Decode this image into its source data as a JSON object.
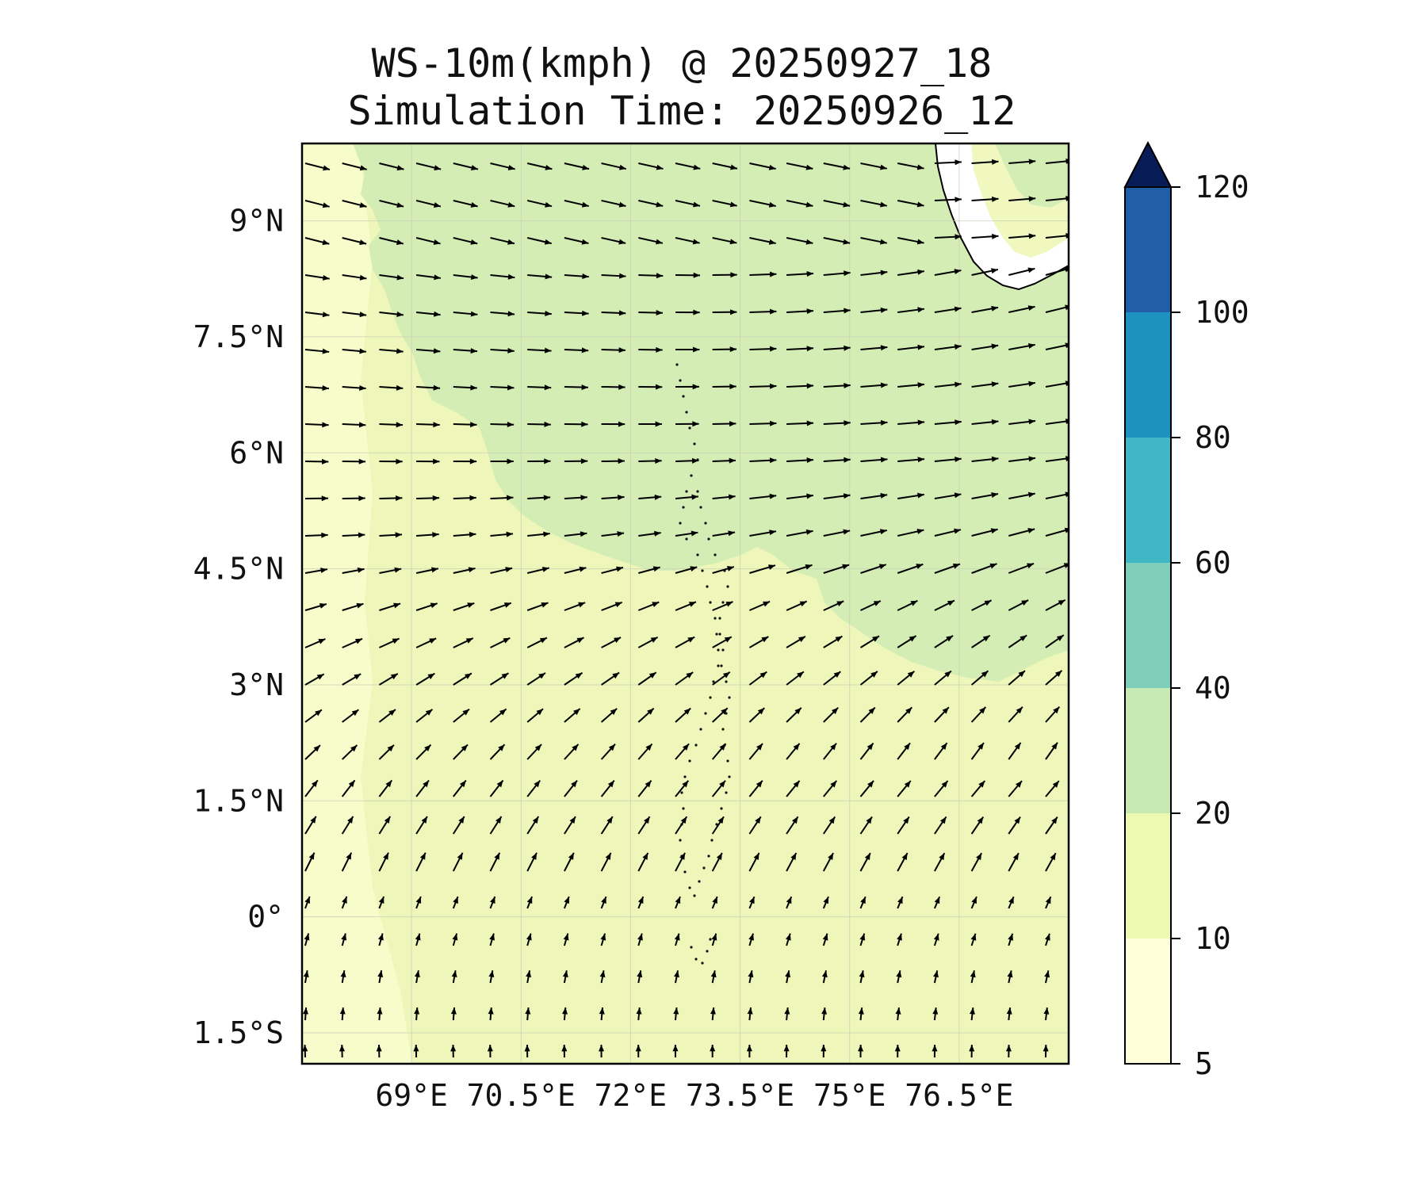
{
  "title": {
    "line1": "WS-10m(kmph) @ 20250927_18",
    "line2": "Simulation Time: 20250926_12"
  },
  "map": {
    "lat_ticks": [
      {
        "value": 9.0,
        "label": "9°N"
      },
      {
        "value": 7.5,
        "label": "7.5°N"
      },
      {
        "value": 6.0,
        "label": "6°N"
      },
      {
        "value": 4.5,
        "label": "4.5°N"
      },
      {
        "value": 3.0,
        "label": "3°N"
      },
      {
        "value": 1.5,
        "label": "1.5°N"
      },
      {
        "value": 0.0,
        "label": "0°"
      },
      {
        "value": -1.5,
        "label": "1.5°S"
      }
    ],
    "lon_ticks": [
      {
        "value": 69.0,
        "label": "69°E"
      },
      {
        "value": 70.5,
        "label": "70.5°E"
      },
      {
        "value": 72.0,
        "label": "72°E"
      },
      {
        "value": 73.5,
        "label": "73.5°E"
      },
      {
        "value": 75.0,
        "label": "75°E"
      },
      {
        "value": 76.5,
        "label": "76.5°E"
      }
    ],
    "lon_range": [
      67.5,
      78.0
    ],
    "lat_range": [
      -1.9,
      10.0
    ],
    "coastline": "India southern tip (top-right)",
    "islands": "Maldives / Lakshadweep atolls (dotted chain near 73.5°E)"
  },
  "colorbar": {
    "levels": [
      5,
      10,
      20,
      40,
      60,
      80,
      100,
      120
    ],
    "tick_labels": [
      "5",
      "10",
      "20",
      "40",
      "60",
      "80",
      "100",
      "120"
    ],
    "colors": [
      "#ffffd9",
      "#edf8b1",
      "#c7e9b4",
      "#7fcdbb",
      "#41b6c4",
      "#1d91c0",
      "#225ea8",
      "#0c2c84"
    ],
    "extend": "max",
    "extend_color": "#081d58"
  },
  "field_colors": {
    "calm": "#f7fccb",
    "light": "#edf8b1",
    "moderate": "#d3edb5",
    "land": "#ffffff"
  }
}
